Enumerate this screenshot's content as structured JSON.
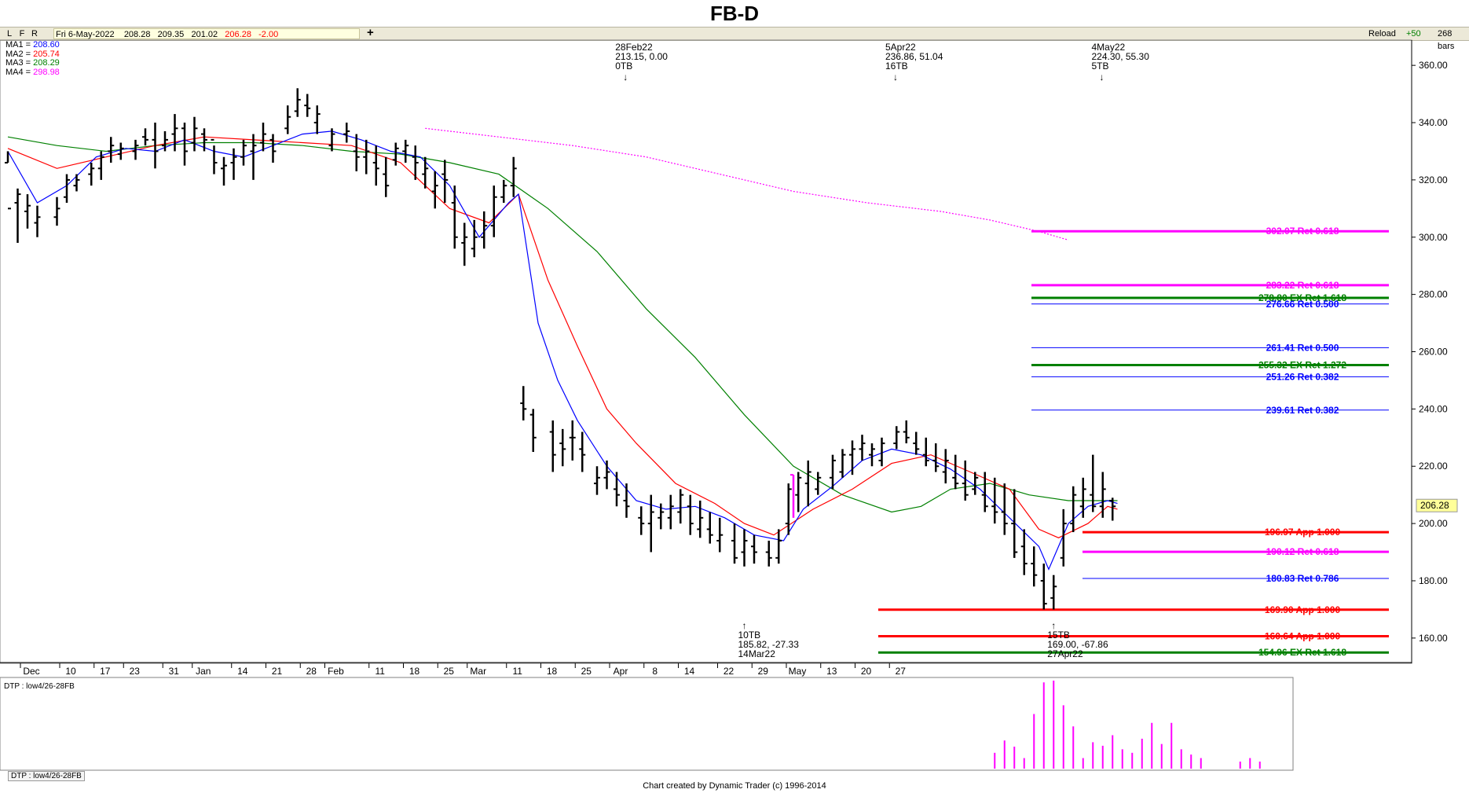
{
  "header": {
    "title": "FB-D"
  },
  "toolbar": {
    "lfr": [
      "L",
      "F",
      "R"
    ],
    "date": "Fri 6-May-2022",
    "open": "208.28",
    "high": "209.35",
    "low": "201.02",
    "close": "206.28",
    "change": "-2.00",
    "plus": "+",
    "reload": "Reload",
    "zoom": "+50",
    "bars": "268 bars"
  },
  "ma_legend": [
    {
      "label": "MA1 = ",
      "value": "208.60",
      "color": "#0000ff"
    },
    {
      "label": "MA2 = ",
      "value": "205.74",
      "color": "#ff0000"
    },
    {
      "label": "MA3 = ",
      "value": "208.29",
      "color": "#008000"
    },
    {
      "label": "MA4 = ",
      "value": "298.98",
      "color": "#ff00ff"
    }
  ],
  "chart_data": {
    "type": "ohlc",
    "price_axis": {
      "min": 152,
      "max": 368,
      "ticks": [
        "360.00",
        "340.00",
        "320.00",
        "300.00",
        "280.00",
        "260.00",
        "240.00",
        "220.00",
        "200.00",
        "180.00",
        "160.00"
      ],
      "tick_values": [
        360,
        340,
        320,
        300,
        280,
        260,
        240,
        220,
        200,
        180,
        160
      ],
      "last_price": "206.28"
    },
    "x_axis": {
      "labels": [
        "Dec",
        "10",
        "17",
        "23",
        "31",
        "Jan",
        "14",
        "21",
        "28",
        "Feb",
        "11",
        "18",
        "25",
        "Mar",
        "11",
        "18",
        "25",
        "Apr",
        "8",
        "14",
        "22",
        "29",
        "May",
        "13",
        "20",
        "27"
      ],
      "label_day": [
        0,
        8,
        15,
        21,
        29,
        35,
        43,
        50,
        57,
        62,
        71,
        78,
        85,
        91,
        99,
        106,
        113,
        120,
        127,
        134,
        142,
        149,
        156,
        163,
        170,
        177
      ]
    },
    "bars": [
      [
        0,
        330,
        326,
        326,
        310
      ],
      [
        2,
        317,
        298,
        312,
        315
      ],
      [
        4,
        315,
        303,
        309,
        311
      ],
      [
        6,
        311,
        300,
        305,
        307
      ],
      [
        10,
        314,
        304,
        307,
        310
      ],
      [
        12,
        322,
        312,
        314,
        320
      ],
      [
        14,
        322,
        316,
        318,
        320
      ],
      [
        17,
        326,
        318,
        322,
        324
      ],
      [
        19,
        330,
        320,
        324,
        328
      ],
      [
        21,
        335,
        326,
        330,
        332
      ],
      [
        23,
        333,
        327,
        329,
        331
      ],
      [
        26,
        334,
        327,
        330,
        332
      ],
      [
        28,
        338,
        332,
        335,
        334
      ],
      [
        30,
        340,
        324,
        334,
        330
      ],
      [
        32,
        337,
        330,
        332,
        334
      ],
      [
        34,
        343,
        330,
        336,
        338
      ],
      [
        36,
        340,
        325,
        338,
        330
      ],
      [
        38,
        342,
        330,
        333,
        338
      ],
      [
        40,
        338,
        330,
        336,
        334
      ],
      [
        42,
        332,
        322,
        334,
        326
      ],
      [
        44,
        328,
        318,
        324,
        325
      ],
      [
        46,
        331,
        320,
        326,
        328
      ],
      [
        48,
        334,
        325,
        328,
        332
      ],
      [
        50,
        336,
        320,
        330,
        332
      ],
      [
        52,
        340,
        330,
        333,
        336
      ],
      [
        54,
        336,
        326,
        334,
        330
      ],
      [
        57,
        346,
        336,
        338,
        342
      ],
      [
        59,
        352,
        342,
        344,
        348
      ],
      [
        61,
        350,
        342,
        346,
        345
      ],
      [
        63,
        346,
        336,
        340,
        343
      ],
      [
        66,
        338,
        330,
        332,
        336
      ],
      [
        69,
        340,
        333,
        336,
        337
      ],
      [
        71,
        336,
        323,
        330,
        328
      ],
      [
        73,
        334,
        322,
        328,
        330
      ],
      [
        75,
        332,
        318,
        326,
        324
      ],
      [
        77,
        328,
        314,
        322,
        318
      ],
      [
        79,
        333,
        325,
        327,
        331
      ],
      [
        81,
        334,
        326,
        330,
        332
      ],
      [
        83,
        332,
        320,
        328,
        326
      ],
      [
        85,
        328,
        317,
        322,
        324
      ],
      [
        87,
        323,
        310,
        316,
        318
      ],
      [
        89,
        327,
        312,
        322,
        320
      ],
      [
        91,
        318,
        296,
        312,
        300
      ],
      [
        93,
        305,
        290,
        298,
        300
      ],
      [
        95,
        306,
        293,
        296,
        300
      ],
      [
        97,
        309,
        296,
        300,
        304
      ],
      [
        99,
        318,
        300,
        304,
        314
      ],
      [
        101,
        320,
        312,
        314,
        318
      ],
      [
        103,
        328,
        314,
        318,
        324
      ],
      [
        105,
        248,
        236,
        242,
        240
      ],
      [
        107,
        240,
        225,
        238,
        230
      ],
      [
        111,
        236,
        218,
        232,
        224
      ],
      [
        113,
        233,
        220,
        228,
        226
      ],
      [
        115,
        236,
        222,
        230,
        230
      ],
      [
        117,
        232,
        218,
        226,
        224
      ],
      [
        120,
        220,
        210,
        214,
        216
      ],
      [
        122,
        222,
        212,
        216,
        218
      ],
      [
        124,
        218,
        206,
        212,
        210
      ],
      [
        126,
        214,
        202,
        208,
        206
      ],
      [
        129,
        206,
        196,
        202,
        200
      ],
      [
        131,
        210,
        190,
        200,
        204
      ],
      [
        133,
        207,
        198,
        202,
        204
      ],
      [
        135,
        210,
        198,
        202,
        206
      ],
      [
        137,
        212,
        200,
        204,
        210
      ],
      [
        139,
        210,
        196,
        206,
        200
      ],
      [
        141,
        208,
        195,
        198,
        202
      ],
      [
        143,
        204,
        193,
        198,
        196
      ],
      [
        145,
        202,
        190,
        194,
        196
      ],
      [
        148,
        200,
        186,
        194,
        188
      ],
      [
        150,
        198,
        185,
        190,
        194
      ],
      [
        152,
        196,
        186,
        192,
        190
      ],
      [
        155,
        194,
        185,
        190,
        188
      ],
      [
        157,
        198,
        186,
        188,
        194
      ],
      [
        159,
        214,
        196,
        200,
        212
      ],
      [
        161,
        218,
        204,
        210,
        216
      ],
      [
        163,
        222,
        206,
        214,
        218
      ],
      [
        165,
        218,
        210,
        212,
        216
      ],
      [
        168,
        224,
        212,
        216,
        222
      ],
      [
        170,
        226,
        216,
        218,
        224
      ],
      [
        172,
        229,
        217,
        224,
        226
      ],
      [
        174,
        231,
        222,
        226,
        228
      ],
      [
        176,
        228,
        220,
        224,
        226
      ],
      [
        178,
        230,
        220,
        222,
        228
      ],
      [
        181,
        234,
        226,
        228,
        232
      ],
      [
        183,
        236,
        228,
        232,
        230
      ],
      [
        185,
        232,
        224,
        228,
        226
      ],
      [
        187,
        230,
        220,
        224,
        222
      ],
      [
        189,
        228,
        218,
        222,
        220
      ],
      [
        191,
        226,
        214,
        218,
        222
      ],
      [
        193,
        224,
        212,
        216,
        214
      ],
      [
        195,
        222,
        208,
        214,
        210
      ],
      [
        197,
        218,
        210,
        212,
        216
      ],
      [
        199,
        218,
        204,
        210,
        206
      ],
      [
        201,
        216,
        200,
        206,
        204
      ],
      [
        203,
        214,
        196,
        204,
        200
      ],
      [
        205,
        212,
        188,
        200,
        190
      ],
      [
        207,
        198,
        182,
        192,
        186
      ],
      [
        209,
        192,
        178,
        186,
        182
      ],
      [
        211,
        186,
        170,
        180,
        172
      ],
      [
        213,
        182,
        170,
        174,
        178
      ],
      [
        215,
        205,
        185,
        188,
        200
      ],
      [
        217,
        213,
        197,
        200,
        210
      ],
      [
        219,
        216,
        202,
        206,
        212
      ],
      [
        221,
        224,
        204,
        210,
        206
      ],
      [
        223,
        218,
        202,
        206,
        212
      ],
      [
        225,
        209,
        201,
        208,
        206
      ]
    ],
    "ma1": [
      [
        0,
        330
      ],
      [
        6,
        312
      ],
      [
        12,
        318
      ],
      [
        18,
        328
      ],
      [
        24,
        331
      ],
      [
        30,
        330
      ],
      [
        36,
        334
      ],
      [
        42,
        330
      ],
      [
        48,
        328
      ],
      [
        54,
        332
      ],
      [
        60,
        336
      ],
      [
        66,
        337
      ],
      [
        72,
        334
      ],
      [
        78,
        330
      ],
      [
        84,
        328
      ],
      [
        90,
        318
      ],
      [
        96,
        300
      ],
      [
        102,
        312
      ],
      [
        104,
        315
      ],
      [
        108,
        270
      ],
      [
        112,
        250
      ],
      [
        116,
        236
      ],
      [
        122,
        220
      ],
      [
        128,
        208
      ],
      [
        134,
        205
      ],
      [
        140,
        206
      ],
      [
        146,
        202
      ],
      [
        152,
        196
      ],
      [
        158,
        194
      ],
      [
        162,
        205
      ],
      [
        168,
        213
      ],
      [
        174,
        222
      ],
      [
        180,
        226
      ],
      [
        186,
        224
      ],
      [
        192,
        219
      ],
      [
        198,
        212
      ],
      [
        204,
        202
      ],
      [
        210,
        192
      ],
      [
        212,
        184
      ],
      [
        216,
        200
      ],
      [
        220,
        206
      ],
      [
        224,
        208
      ],
      [
        226,
        207
      ]
    ],
    "ma2": [
      [
        0,
        331
      ],
      [
        10,
        324
      ],
      [
        20,
        328
      ],
      [
        30,
        332
      ],
      [
        40,
        335
      ],
      [
        50,
        334
      ],
      [
        60,
        333
      ],
      [
        70,
        332
      ],
      [
        80,
        326
      ],
      [
        90,
        310
      ],
      [
        98,
        305
      ],
      [
        104,
        315
      ],
      [
        110,
        285
      ],
      [
        116,
        262
      ],
      [
        122,
        240
      ],
      [
        128,
        228
      ],
      [
        136,
        214
      ],
      [
        144,
        207
      ],
      [
        150,
        200
      ],
      [
        156,
        196
      ],
      [
        164,
        205
      ],
      [
        172,
        212
      ],
      [
        180,
        221
      ],
      [
        188,
        224
      ],
      [
        196,
        218
      ],
      [
        204,
        212
      ],
      [
        210,
        198
      ],
      [
        214,
        195
      ],
      [
        220,
        200
      ],
      [
        224,
        206
      ],
      [
        226,
        205
      ]
    ],
    "ma3": [
      [
        0,
        335
      ],
      [
        10,
        332
      ],
      [
        20,
        330
      ],
      [
        30,
        332
      ],
      [
        40,
        333
      ],
      [
        50,
        333
      ],
      [
        60,
        332
      ],
      [
        70,
        330
      ],
      [
        80,
        329
      ],
      [
        90,
        326
      ],
      [
        100,
        322
      ],
      [
        110,
        310
      ],
      [
        120,
        295
      ],
      [
        130,
        275
      ],
      [
        140,
        258
      ],
      [
        150,
        238
      ],
      [
        160,
        220
      ],
      [
        170,
        210
      ],
      [
        180,
        204
      ],
      [
        186,
        206
      ],
      [
        192,
        212
      ],
      [
        200,
        214
      ],
      [
        208,
        210
      ],
      [
        216,
        208
      ],
      [
        226,
        208
      ]
    ],
    "ma4": [
      [
        85,
        338
      ],
      [
        100,
        335
      ],
      [
        115,
        332
      ],
      [
        130,
        328
      ],
      [
        145,
        322
      ],
      [
        160,
        316
      ],
      [
        175,
        312
      ],
      [
        190,
        309
      ],
      [
        200,
        306
      ],
      [
        210,
        302
      ],
      [
        216,
        299
      ]
    ],
    "pivots": [
      {
        "day": 125,
        "lines": [
          "28Feb22",
          "213.15, 0.00",
          "0TB"
        ],
        "dir": "down"
      },
      {
        "day": 180,
        "lines": [
          "5Apr22",
          "236.86, 51.04",
          "16TB"
        ],
        "dir": "down"
      },
      {
        "day": 222,
        "lines": [
          "4May22",
          "224.30, 55.30",
          "5TB"
        ],
        "dir": "down"
      },
      {
        "day": 150,
        "lines": [
          "10TB",
          "185.82, -27.33",
          "14Mar22"
        ],
        "dir": "up"
      },
      {
        "day": 213,
        "lines": [
          "15TB",
          "169.00, -67.86",
          "27Apr22"
        ],
        "dir": "up"
      }
    ],
    "levels": [
      {
        "price": 302.07,
        "label": "302.07 Ret 0.618",
        "color": "#ff00ff",
        "w": 3,
        "x0": 1313
      },
      {
        "price": 283.22,
        "label": "283.22 Ret 0.618",
        "color": "#ff00ff",
        "w": 3,
        "x0": 1313
      },
      {
        "price": 278.8,
        "label": "278.80 EX Ret 1.618",
        "color": "#008000",
        "w": 3,
        "x0": 1313
      },
      {
        "price": 276.66,
        "label": "276.66 Ret 0.500",
        "color": "#0000ff",
        "w": 1,
        "x0": 1313
      },
      {
        "price": 261.41,
        "label": "261.41 Ret 0.500",
        "color": "#0000ff",
        "w": 1,
        "x0": 1313
      },
      {
        "price": 255.32,
        "label": "255.32 EX Ret 1.272",
        "color": "#008000",
        "w": 3,
        "x0": 1313
      },
      {
        "price": 251.26,
        "label": "251.26 Ret 0.382",
        "color": "#0000ff",
        "w": 1,
        "x0": 1313
      },
      {
        "price": 239.61,
        "label": "239.61 Ret 0.382",
        "color": "#0000ff",
        "w": 1,
        "x0": 1313
      },
      {
        "price": 196.97,
        "label": "196.97 App 1.000",
        "color": "#ff0000",
        "w": 3,
        "x0": 1378
      },
      {
        "price": 190.12,
        "label": "190.12 Ret 0.618",
        "color": "#ff00ff",
        "w": 3,
        "x0": 1378
      },
      {
        "price": 180.83,
        "label": "180.83 Ret 0.786",
        "color": "#0000ff",
        "w": 1,
        "x0": 1378
      },
      {
        "price": 169.9,
        "label": "169.90 App 1.000",
        "color": "#ff0000",
        "w": 3,
        "x0": 1118
      },
      {
        "price": 160.64,
        "label": "160.64 App 1.000",
        "color": "#ff0000",
        "w": 3,
        "x0": 1118
      },
      {
        "price": 154.96,
        "label": "154.96 EX Ret 1.618",
        "color": "#008000",
        "w": 3,
        "x0": 1118
      }
    ],
    "magenta_mark": {
      "day": 160,
      "low": 202,
      "high": 217
    },
    "dtp": {
      "label": "DTP : low4/26-28FB",
      "bars": [
        [
          201,
          0.18
        ],
        [
          203,
          0.32
        ],
        [
          205,
          0.25
        ],
        [
          207,
          0.12
        ],
        [
          209,
          0.62
        ],
        [
          211,
          0.98
        ],
        [
          213,
          1.0
        ],
        [
          215,
          0.72
        ],
        [
          217,
          0.48
        ],
        [
          219,
          0.12
        ],
        [
          221,
          0.3
        ],
        [
          223,
          0.26
        ],
        [
          225,
          0.38
        ],
        [
          227,
          0.22
        ],
        [
          229,
          0.18
        ],
        [
          231,
          0.34
        ],
        [
          233,
          0.52
        ],
        [
          235,
          0.28
        ],
        [
          237,
          0.52
        ],
        [
          239,
          0.22
        ],
        [
          241,
          0.16
        ],
        [
          243,
          0.12
        ],
        [
          251,
          0.08
        ],
        [
          253,
          0.12
        ],
        [
          255,
          0.08
        ]
      ]
    }
  },
  "dtp_tab": "DTP : low4/26-28FB",
  "footer": {
    "credit": "Chart created by Dynamic Trader  (c)  1996-2014"
  }
}
